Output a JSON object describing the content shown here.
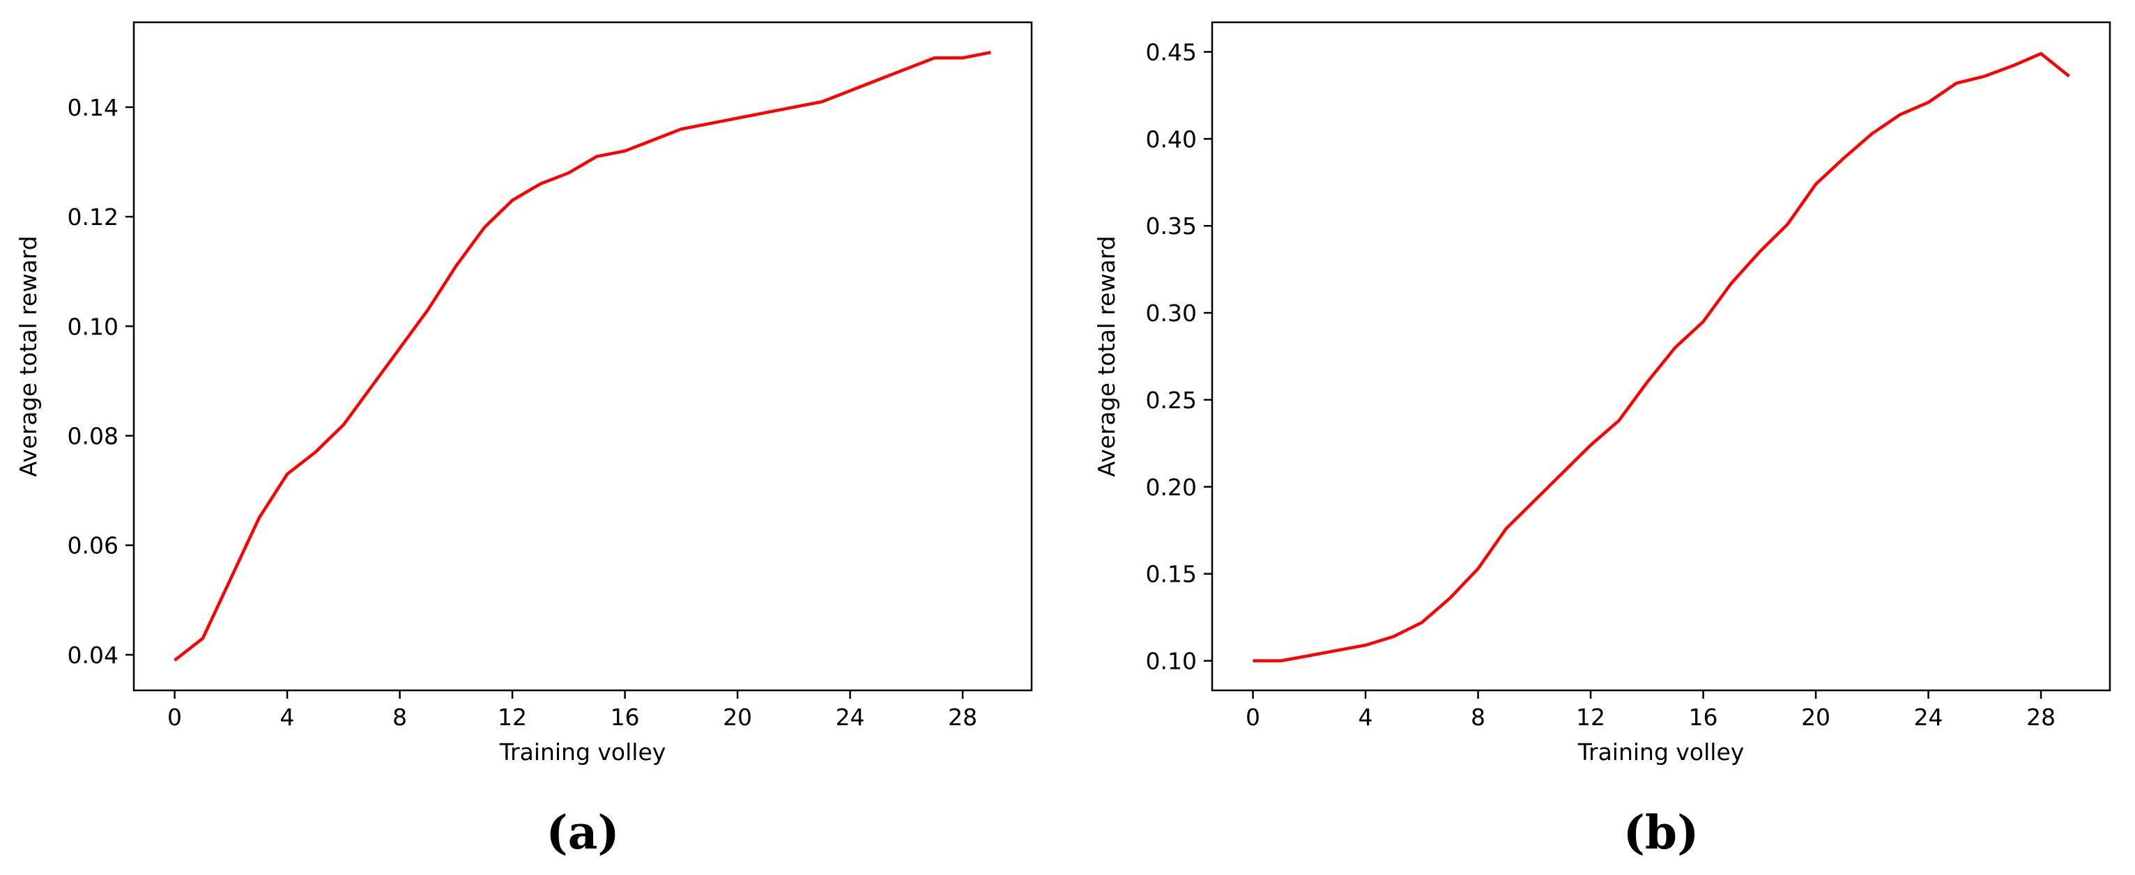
{
  "chart_data": [
    {
      "type": "line",
      "panel_label": "(a)",
      "xlabel": "Training volley",
      "ylabel": "Average total reward",
      "xlim": [
        -1.45,
        30.45
      ],
      "ylim": [
        0.0335,
        0.1555
      ],
      "xticks": [
        0,
        4,
        8,
        12,
        16,
        20,
        24,
        28
      ],
      "yticks": [
        0.04,
        0.06,
        0.08,
        0.1,
        0.12,
        0.14
      ],
      "ytick_labels": [
        "0.04",
        "0.06",
        "0.08",
        "0.10",
        "0.12",
        "0.14"
      ],
      "grid": false,
      "series": [
        {
          "color": "#ff0000",
          "x": [
            0,
            1,
            2,
            3,
            4,
            5,
            6,
            7,
            8,
            9,
            10,
            11,
            12,
            13,
            14,
            15,
            16,
            17,
            18,
            19,
            20,
            21,
            22,
            23,
            24,
            25,
            26,
            27,
            28,
            29
          ],
          "y": [
            0.039,
            0.043,
            0.054,
            0.065,
            0.073,
            0.077,
            0.082,
            0.089,
            0.096,
            0.103,
            0.111,
            0.118,
            0.123,
            0.126,
            0.128,
            0.131,
            0.132,
            0.134,
            0.136,
            0.137,
            0.138,
            0.139,
            0.14,
            0.141,
            0.143,
            0.145,
            0.147,
            0.149,
            0.149,
            0.15
          ]
        }
      ]
    },
    {
      "type": "line",
      "panel_label": "(b)",
      "xlabel": "Training volley",
      "ylabel": "Average total reward",
      "xlim": [
        -1.45,
        30.45
      ],
      "ylim": [
        0.083,
        0.467
      ],
      "xticks": [
        0,
        4,
        8,
        12,
        16,
        20,
        24,
        28
      ],
      "yticks": [
        0.1,
        0.15,
        0.2,
        0.25,
        0.3,
        0.35,
        0.4,
        0.45
      ],
      "ytick_labels": [
        "0.10",
        "0.15",
        "0.20",
        "0.25",
        "0.30",
        "0.35",
        "0.40",
        "0.45"
      ],
      "grid": false,
      "series": [
        {
          "color": "#ff0000",
          "x": [
            0,
            1,
            2,
            3,
            4,
            5,
            6,
            7,
            8,
            9,
            10,
            11,
            12,
            13,
            14,
            15,
            16,
            17,
            18,
            19,
            20,
            21,
            22,
            23,
            24,
            25,
            26,
            27,
            28,
            29
          ],
          "y": [
            0.1,
            0.1,
            0.103,
            0.106,
            0.109,
            0.114,
            0.122,
            0.136,
            0.153,
            0.176,
            0.192,
            0.208,
            0.224,
            0.238,
            0.26,
            0.28,
            0.295,
            0.317,
            0.335,
            0.351,
            0.374,
            0.389,
            0.403,
            0.414,
            0.421,
            0.432,
            0.436,
            0.442,
            0.449,
            0.436
          ]
        }
      ]
    }
  ]
}
